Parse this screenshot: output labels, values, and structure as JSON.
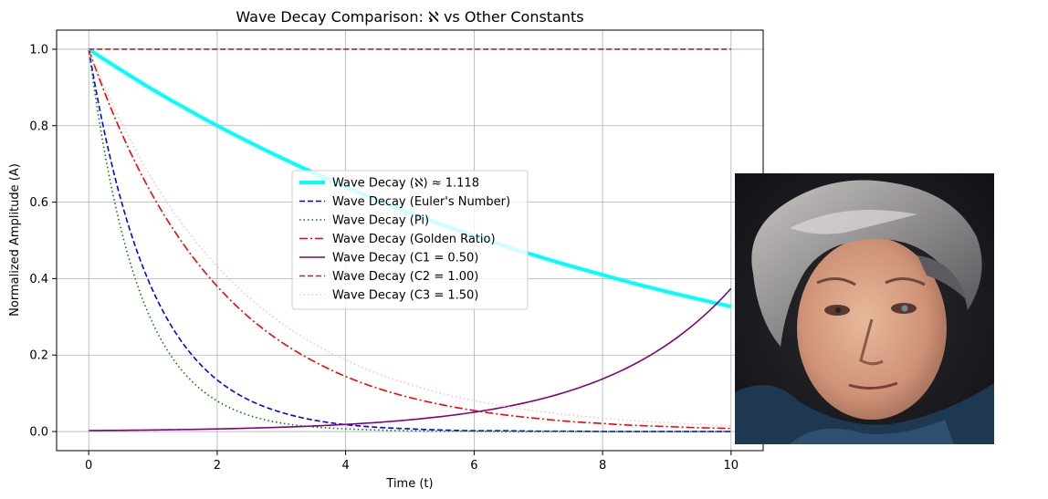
{
  "chart_data": {
    "type": "line",
    "title": "Wave Decay Comparison: ℵ vs Other Constants",
    "xlabel": "Time (t)",
    "ylabel": "Normalized Amplitude (A)",
    "xlim": [
      -0.5,
      10.5
    ],
    "ylim": [
      -0.05,
      1.05
    ],
    "xticks": [
      "0",
      "2",
      "4",
      "6",
      "8",
      "10"
    ],
    "yticks": [
      "0.0",
      "0.2",
      "0.4",
      "0.6",
      "0.8",
      "1.0"
    ],
    "grid": true,
    "legend_position": "center",
    "x": [
      0,
      0.5,
      1,
      1.5,
      2,
      2.5,
      3,
      3.5,
      4,
      4.5,
      5,
      5.5,
      6,
      6.5,
      7,
      7.5,
      8,
      8.5,
      9,
      9.5,
      10
    ],
    "series": [
      {
        "name": "Wave Decay (ℵ) ≈ 1.118",
        "color": "#00ffff",
        "style": "solid-thick",
        "values": [
          1.0,
          0.946,
          0.894,
          0.846,
          0.8,
          0.757,
          0.716,
          0.677,
          0.64,
          0.605,
          0.572,
          0.541,
          0.512,
          0.484,
          0.458,
          0.433,
          0.41,
          0.387,
          0.366,
          0.346,
          0.327
        ]
      },
      {
        "name": "Wave Decay (Euler's Number)",
        "color": "#0000ff",
        "style": "dashed",
        "values": [
          1.0,
          0.607,
          0.368,
          0.223,
          0.135,
          0.082,
          0.05,
          0.03,
          0.018,
          0.011,
          0.007,
          0.004,
          0.002,
          0.002,
          0.001,
          0.001,
          0.0,
          0.0,
          0.0,
          0.0,
          0.0
        ]
      },
      {
        "name": "Wave Decay (Pi)",
        "color": "#008000",
        "style": "dotted",
        "values": [
          1.0,
          0.531,
          0.282,
          0.15,
          0.08,
          0.042,
          0.022,
          0.012,
          0.007,
          0.004,
          0.002,
          0.001,
          0.001,
          0.0,
          0.0,
          0.0,
          0.0,
          0.0,
          0.0,
          0.0,
          0.0
        ]
      },
      {
        "name": "Wave Decay (Golden Ratio)",
        "color": "#ff0000",
        "style": "dashdot",
        "values": [
          1.0,
          0.785,
          0.616,
          0.484,
          0.38,
          0.298,
          0.234,
          0.184,
          0.144,
          0.113,
          0.089,
          0.07,
          0.055,
          0.043,
          0.034,
          0.026,
          0.021,
          0.016,
          0.013,
          0.01,
          0.008
        ]
      },
      {
        "name": "Wave Decay (C1 = 0.50)",
        "color": "#800080",
        "style": "solid",
        "values": [
          0.0025,
          0.0032,
          0.0041,
          0.0053,
          0.0068,
          0.0088,
          0.0113,
          0.0145,
          0.0186,
          0.0239,
          0.0307,
          0.0394,
          0.0506,
          0.065,
          0.0834,
          0.1071,
          0.1376,
          0.1767,
          0.2269,
          0.2914,
          0.3741
        ]
      },
      {
        "name": "Wave Decay (C2 = 1.00)",
        "color": "#a52a2a",
        "style": "dashed",
        "values": [
          1,
          1,
          1,
          1,
          1,
          1,
          1,
          1,
          1,
          1,
          1,
          1,
          1,
          1,
          1,
          1,
          1,
          1,
          1,
          1,
          1
        ]
      },
      {
        "name": "Wave Decay (C3 = 1.50)",
        "color": "#ffc0cb",
        "style": "dotted",
        "values": [
          1.0,
          0.811,
          0.657,
          0.533,
          0.432,
          0.35,
          0.284,
          0.23,
          0.187,
          0.151,
          0.123,
          0.099,
          0.081,
          0.065,
          0.053,
          0.043,
          0.035,
          0.028,
          0.023,
          0.019,
          0.015
        ]
      }
    ]
  },
  "portrait": {
    "icon": "portrait-painting-icon"
  }
}
